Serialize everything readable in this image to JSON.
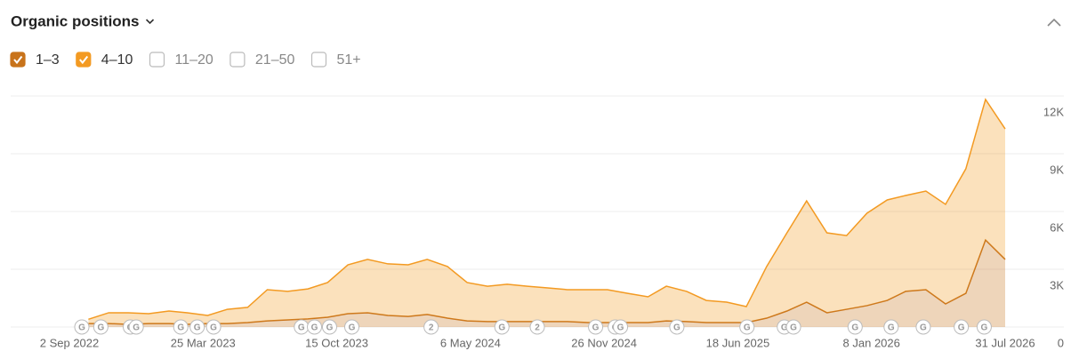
{
  "chart_data": {
    "type": "stacked-area",
    "title": "Organic positions",
    "x": [
      "2022-10-01",
      "2022-11-01",
      "2022-12-01",
      "2023-01-01",
      "2023-02-01",
      "2023-03-01",
      "2023-04-01",
      "2023-05-01",
      "2023-06-01",
      "2023-07-01",
      "2023-08-01",
      "2023-09-01",
      "2023-10-01",
      "2023-11-01",
      "2023-12-01",
      "2024-01-01",
      "2024-02-01",
      "2024-03-01",
      "2024-04-01",
      "2024-05-01",
      "2024-06-01",
      "2024-07-01",
      "2024-08-01",
      "2024-09-01",
      "2024-10-01",
      "2024-11-01",
      "2024-12-01",
      "2025-01-01",
      "2025-02-01",
      "2025-03-01",
      "2025-04-01",
      "2025-05-01",
      "2025-06-01",
      "2025-07-01",
      "2025-08-01",
      "2025-09-01",
      "2025-10-01",
      "2025-11-01",
      "2025-12-01",
      "2026-01-01",
      "2026-02-01",
      "2026-03-01",
      "2026-04-01",
      "2026-05-01",
      "2026-06-01",
      "2026-07-01",
      "2026-07-31"
    ],
    "series": [
      {
        "name": "1–3",
        "color": "#c8731b",
        "values": [
          180,
          180,
          140,
          180,
          180,
          140,
          180,
          180,
          230,
          320,
          370,
          420,
          510,
          690,
          740,
          600,
          550,
          650,
          460,
          320,
          280,
          280,
          280,
          280,
          280,
          230,
          230,
          230,
          230,
          320,
          280,
          230,
          230,
          230,
          460,
          830,
          1290,
          740,
          920,
          1110,
          1380,
          1850,
          1940,
          1200,
          1750,
          4520,
          3510
        ]
      },
      {
        "name": "4–10",
        "color": "#f39a22",
        "values": [
          220,
          560,
          600,
          510,
          650,
          600,
          420,
          740,
          790,
          1620,
          1480,
          1560,
          1800,
          2540,
          2770,
          2680,
          2680,
          2860,
          2680,
          1990,
          1840,
          1940,
          1840,
          1750,
          1660,
          1710,
          1710,
          1520,
          1340,
          1800,
          1570,
          1150,
          1060,
          830,
          2680,
          4060,
          5260,
          4150,
          3830,
          4800,
          5220,
          4980,
          5120,
          5170,
          6470,
          7300,
          6780
        ]
      }
    ],
    "inactive_series": [
      "11–20",
      "21–50",
      "51+"
    ],
    "xlim": [
      "2022-09-02",
      "2026-07-31"
    ],
    "xticks": [
      {
        "value": "2022-09-02",
        "label": "2 Sep 2022"
      },
      {
        "value": "2023-03-25",
        "label": "25 Mar 2023"
      },
      {
        "value": "2023-10-15",
        "label": "15 Oct 2023"
      },
      {
        "value": "2024-05-06",
        "label": "6 May 2024"
      },
      {
        "value": "2024-11-26",
        "label": "26 Nov 2024"
      },
      {
        "value": "2025-06-18",
        "label": "18 Jun 2025"
      },
      {
        "value": "2026-01-08",
        "label": "8 Jan 2026"
      },
      {
        "value": "2026-07-31",
        "label": "31 Jul 2026"
      }
    ],
    "ylim": [
      0,
      12000
    ],
    "yticks": [
      {
        "value": 0,
        "label": "0"
      },
      {
        "value": 3000,
        "label": "3K"
      },
      {
        "value": 6000,
        "label": "6K"
      },
      {
        "value": 9000,
        "label": "9K"
      },
      {
        "value": 12000,
        "label": "12K"
      }
    ],
    "grid": true,
    "events": [
      {
        "x": "2022-09-21",
        "label": "G"
      },
      {
        "x": "2022-10-20",
        "label": "G"
      },
      {
        "x": "2022-12-04",
        "label": "G"
      },
      {
        "x": "2022-12-13",
        "label": "G"
      },
      {
        "x": "2023-02-19",
        "label": "G"
      },
      {
        "x": "2023-03-16",
        "label": "G"
      },
      {
        "x": "2023-04-10",
        "label": "G"
      },
      {
        "x": "2023-08-22",
        "label": "G"
      },
      {
        "x": "2023-09-11",
        "label": "G"
      },
      {
        "x": "2023-10-04",
        "label": "G"
      },
      {
        "x": "2023-11-07",
        "label": "G"
      },
      {
        "x": "2024-03-07",
        "label": "2"
      },
      {
        "x": "2024-06-23",
        "label": "G"
      },
      {
        "x": "2024-08-16",
        "label": "2"
      },
      {
        "x": "2024-11-13",
        "label": "G"
      },
      {
        "x": "2024-12-13",
        "label": "G"
      },
      {
        "x": "2024-12-21",
        "label": "G"
      },
      {
        "x": "2025-03-17",
        "label": "G"
      },
      {
        "x": "2025-07-02",
        "label": "G"
      },
      {
        "x": "2025-08-28",
        "label": "G"
      },
      {
        "x": "2025-09-11",
        "label": "G"
      },
      {
        "x": "2025-12-14",
        "label": "G"
      },
      {
        "x": "2026-02-07",
        "label": "G"
      },
      {
        "x": "2026-03-28",
        "label": "G"
      },
      {
        "x": "2026-05-25",
        "label": "G"
      },
      {
        "x": "2026-06-29",
        "label": "G"
      }
    ]
  }
}
